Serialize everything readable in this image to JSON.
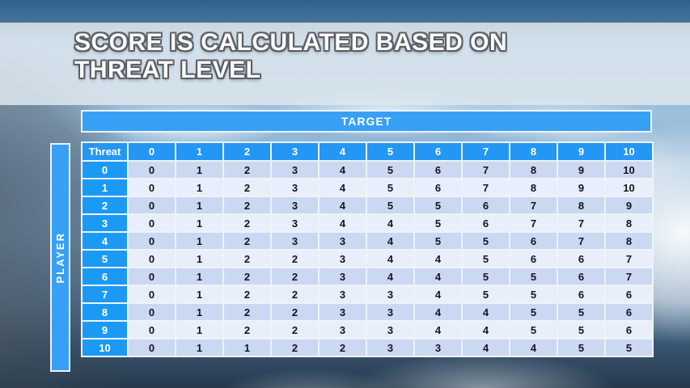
{
  "title": {
    "line1": "SCORE IS CALCULATED BASED ON",
    "line2": "THREAT LEVEL"
  },
  "target_band_label": "TARGET",
  "player_band_label": "PLAYER",
  "table": {
    "corner_label": "Threat",
    "column_headers": [
      "0",
      "1",
      "2",
      "3",
      "4",
      "5",
      "6",
      "7",
      "8",
      "9",
      "10"
    ],
    "rows": [
      {
        "threat": "0",
        "values": [
          "0",
          "1",
          "2",
          "3",
          "4",
          "5",
          "6",
          "7",
          "8",
          "9",
          "10"
        ]
      },
      {
        "threat": "1",
        "values": [
          "0",
          "1",
          "2",
          "3",
          "4",
          "5",
          "6",
          "7",
          "8",
          "9",
          "10"
        ]
      },
      {
        "threat": "2",
        "values": [
          "0",
          "1",
          "2",
          "3",
          "4",
          "5",
          "5",
          "6",
          "7",
          "8",
          "9"
        ]
      },
      {
        "threat": "3",
        "values": [
          "0",
          "1",
          "2",
          "3",
          "4",
          "4",
          "5",
          "6",
          "7",
          "7",
          "8"
        ]
      },
      {
        "threat": "4",
        "values": [
          "0",
          "1",
          "2",
          "3",
          "3",
          "4",
          "5",
          "5",
          "6",
          "7",
          "8"
        ]
      },
      {
        "threat": "5",
        "values": [
          "0",
          "1",
          "2",
          "2",
          "3",
          "4",
          "4",
          "5",
          "6",
          "6",
          "7"
        ]
      },
      {
        "threat": "6",
        "values": [
          "0",
          "1",
          "2",
          "2",
          "3",
          "4",
          "4",
          "5",
          "5",
          "6",
          "7"
        ]
      },
      {
        "threat": "7",
        "values": [
          "0",
          "1",
          "2",
          "2",
          "3",
          "3",
          "4",
          "5",
          "5",
          "6",
          "6"
        ]
      },
      {
        "threat": "8",
        "values": [
          "0",
          "1",
          "2",
          "2",
          "3",
          "3",
          "4",
          "4",
          "5",
          "5",
          "6"
        ]
      },
      {
        "threat": "9",
        "values": [
          "0",
          "1",
          "2",
          "2",
          "3",
          "3",
          "4",
          "4",
          "5",
          "5",
          "6"
        ]
      },
      {
        "threat": "10",
        "values": [
          "0",
          "1",
          "1",
          "2",
          "2",
          "3",
          "3",
          "4",
          "4",
          "5",
          "5"
        ]
      }
    ]
  },
  "chart_data": {
    "type": "table",
    "title": "SCORE IS CALCULATED BASED ON THREAT LEVEL",
    "column_axis_label": "TARGET",
    "row_axis_label": "PLAYER",
    "row_header": "Threat",
    "columns": [
      0,
      1,
      2,
      3,
      4,
      5,
      6,
      7,
      8,
      9,
      10
    ],
    "rows": [
      0,
      1,
      2,
      3,
      4,
      5,
      6,
      7,
      8,
      9,
      10
    ],
    "values": [
      [
        0,
        1,
        2,
        3,
        4,
        5,
        6,
        7,
        8,
        9,
        10
      ],
      [
        0,
        1,
        2,
        3,
        4,
        5,
        6,
        7,
        8,
        9,
        10
      ],
      [
        0,
        1,
        2,
        3,
        4,
        5,
        5,
        6,
        7,
        8,
        9
      ],
      [
        0,
        1,
        2,
        3,
        4,
        4,
        5,
        6,
        7,
        7,
        8
      ],
      [
        0,
        1,
        2,
        3,
        3,
        4,
        5,
        5,
        6,
        7,
        8
      ],
      [
        0,
        1,
        2,
        2,
        3,
        4,
        4,
        5,
        6,
        6,
        7
      ],
      [
        0,
        1,
        2,
        2,
        3,
        4,
        4,
        5,
        5,
        6,
        7
      ],
      [
        0,
        1,
        2,
        2,
        3,
        3,
        4,
        5,
        5,
        6,
        6
      ],
      [
        0,
        1,
        2,
        2,
        3,
        3,
        4,
        4,
        5,
        5,
        6
      ],
      [
        0,
        1,
        2,
        2,
        3,
        3,
        4,
        4,
        5,
        5,
        6
      ],
      [
        0,
        1,
        1,
        2,
        2,
        3,
        3,
        4,
        4,
        5,
        5
      ]
    ]
  },
  "colors": {
    "band_blue": "#38a0f4",
    "header_blue": "#2496f3",
    "row_header_blue": "#1b9af5",
    "row_even": "#cbd8f2",
    "row_odd": "#e9eefb",
    "cell_text": "#15151d",
    "title_text": "#fbfcfd"
  }
}
